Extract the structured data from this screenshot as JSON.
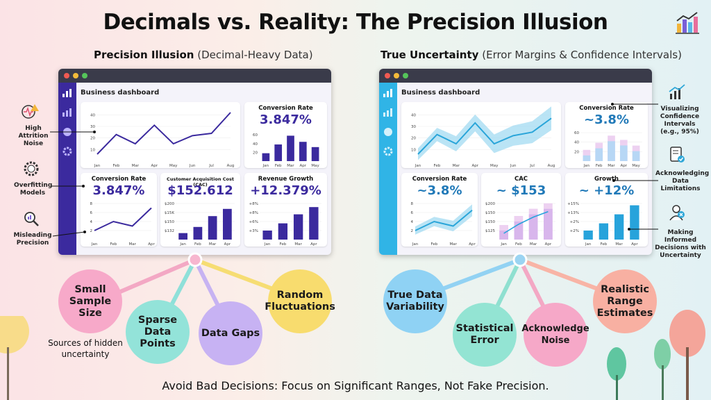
{
  "title": "Decimals vs. Reality: The Precision Illusion",
  "left": {
    "heading_bold": "Precision Illusion",
    "heading_light": "(Decimal-Heavy Data)",
    "dashboard_title": "Business dashboard",
    "side_labels": [
      "High Attrition Noise",
      "Overfitting Models",
      "Misleading Precision"
    ],
    "cards": {
      "conv_top": {
        "title": "Conversion Rate",
        "value": "3.847%"
      },
      "conv": {
        "title": "Conversion Rate",
        "value": "3.847%"
      },
      "cac": {
        "title": "Customer Acquisition Cost (CAC)",
        "value": "$152.612"
      },
      "growth": {
        "title": "Revenue Growth",
        "value": "+12.379%"
      }
    },
    "bubbles": [
      "Small Sample Size",
      "Sparse Data Points",
      "Data Gaps",
      "Random Fluctuations"
    ],
    "sources_label": "Sources of hidden uncertainty"
  },
  "right": {
    "heading_bold": "True Uncertainty",
    "heading_light": "(Error Margins & Confidence Intervals)",
    "dashboard_title": "Business dashboard",
    "side_labels": [
      "Visualizing Confidence Intervals (e.g., 95%)",
      "Acknowledging Data Limitations",
      "Making Informed Decisions with Uncertainty"
    ],
    "cards": {
      "conv_top": {
        "title": "Conversion Rate",
        "value": "~3.8%"
      },
      "conv": {
        "title": "Conversion Rate",
        "value": "~3.8%"
      },
      "cac": {
        "title": "CAC",
        "value": "~ $153"
      },
      "growth": {
        "title": "Growth",
        "value": "~ +12%"
      }
    },
    "bubbles": [
      "True Data Variability",
      "Statistical Error",
      "Acknowledge Noise",
      "Realistic Range Estimates"
    ]
  },
  "footer": "Avoid Bad Decisions: Focus on Significant Ranges, Not Fake Precision.",
  "chart_data": [
    {
      "type": "line",
      "id": "left-main",
      "categories": [
        "Jan",
        "Feb",
        "Mar",
        "Apr",
        "May",
        "Jun",
        "Jul",
        "Aug"
      ],
      "values": [
        6,
        23,
        15,
        31,
        15,
        22,
        24,
        42
      ],
      "yticks": [
        10,
        20,
        30,
        40
      ],
      "ylim": [
        0,
        45
      ]
    },
    {
      "type": "bar",
      "id": "left-conv-top",
      "categories": [
        "Jan",
        "Feb",
        "Mar",
        "Apr",
        "May"
      ],
      "values": [
        18,
        38,
        58,
        44,
        32
      ],
      "yticks": [
        20,
        40,
        60
      ],
      "ylim": [
        0,
        65
      ]
    },
    {
      "type": "line",
      "id": "left-conv",
      "categories": [
        "Jan",
        "Feb",
        "Mar",
        "Apr"
      ],
      "values": [
        2,
        4,
        3,
        7
      ],
      "yticks": [
        2,
        4,
        6,
        8
      ],
      "ylim": [
        0,
        8
      ]
    },
    {
      "type": "bar",
      "id": "left-cac",
      "categories": [
        "Jan",
        "Feb",
        "Mar",
        "Apr"
      ],
      "tick_labels": [
        "$132",
        "$150",
        "$15K",
        "$200"
      ],
      "values": [
        0.18,
        0.35,
        0.65,
        0.85
      ]
    },
    {
      "type": "bar",
      "id": "left-growth",
      "categories": [
        "Jan",
        "Feb",
        "Mar",
        "Apr"
      ],
      "tick_labels": [
        "+3%",
        "+6%",
        "+8%",
        "+8%"
      ],
      "values": [
        0.25,
        0.45,
        0.7,
        0.9
      ]
    },
    {
      "type": "area",
      "id": "right-main",
      "categories": [
        "Jan",
        "Feb",
        "Mar",
        "Apr",
        "May",
        "Jun",
        "Jul",
        "Aug"
      ],
      "values": [
        6,
        23,
        15,
        33,
        15,
        22,
        25,
        37
      ],
      "yticks": [
        10,
        20,
        30,
        40
      ],
      "ylim": [
        0,
        45
      ]
    },
    {
      "type": "bar",
      "id": "right-conv-top",
      "categories": [
        "Jan",
        "Feb",
        "Mar",
        "Apr",
        "May"
      ],
      "tick_labels": [
        "20",
        "40",
        "60"
      ],
      "values": [
        0.2,
        0.45,
        0.7,
        0.55,
        0.35
      ]
    },
    {
      "type": "area",
      "id": "right-conv",
      "categories": [
        "Jan",
        "Feb",
        "Mar",
        "Apr"
      ],
      "yticks": [
        2,
        4,
        6,
        8
      ],
      "ylim": [
        0,
        8
      ],
      "values": [
        2,
        4,
        3,
        6.5
      ]
    },
    {
      "type": "bar",
      "id": "right-cac",
      "categories": [
        "Jan",
        "Feb",
        "Mar",
        "Apr"
      ],
      "tick_labels": [
        "$125",
        "$150",
        "$150",
        "$200"
      ],
      "values": [
        0.25,
        0.5,
        0.7,
        0.85
      ]
    },
    {
      "type": "bar",
      "id": "right-growth",
      "categories": [
        "Jan",
        "Feb",
        "Mar",
        "Apr"
      ],
      "tick_labels": [
        "+2%",
        "+2%",
        "+13%",
        "+15%"
      ],
      "values": [
        0.25,
        0.45,
        0.7,
        0.95
      ]
    }
  ],
  "colors": {
    "left_accent": "#3b2a9e",
    "right_accent": "#2fa7d8",
    "left_bar": "#3b2a9e",
    "right_bar": "#27a3db"
  }
}
